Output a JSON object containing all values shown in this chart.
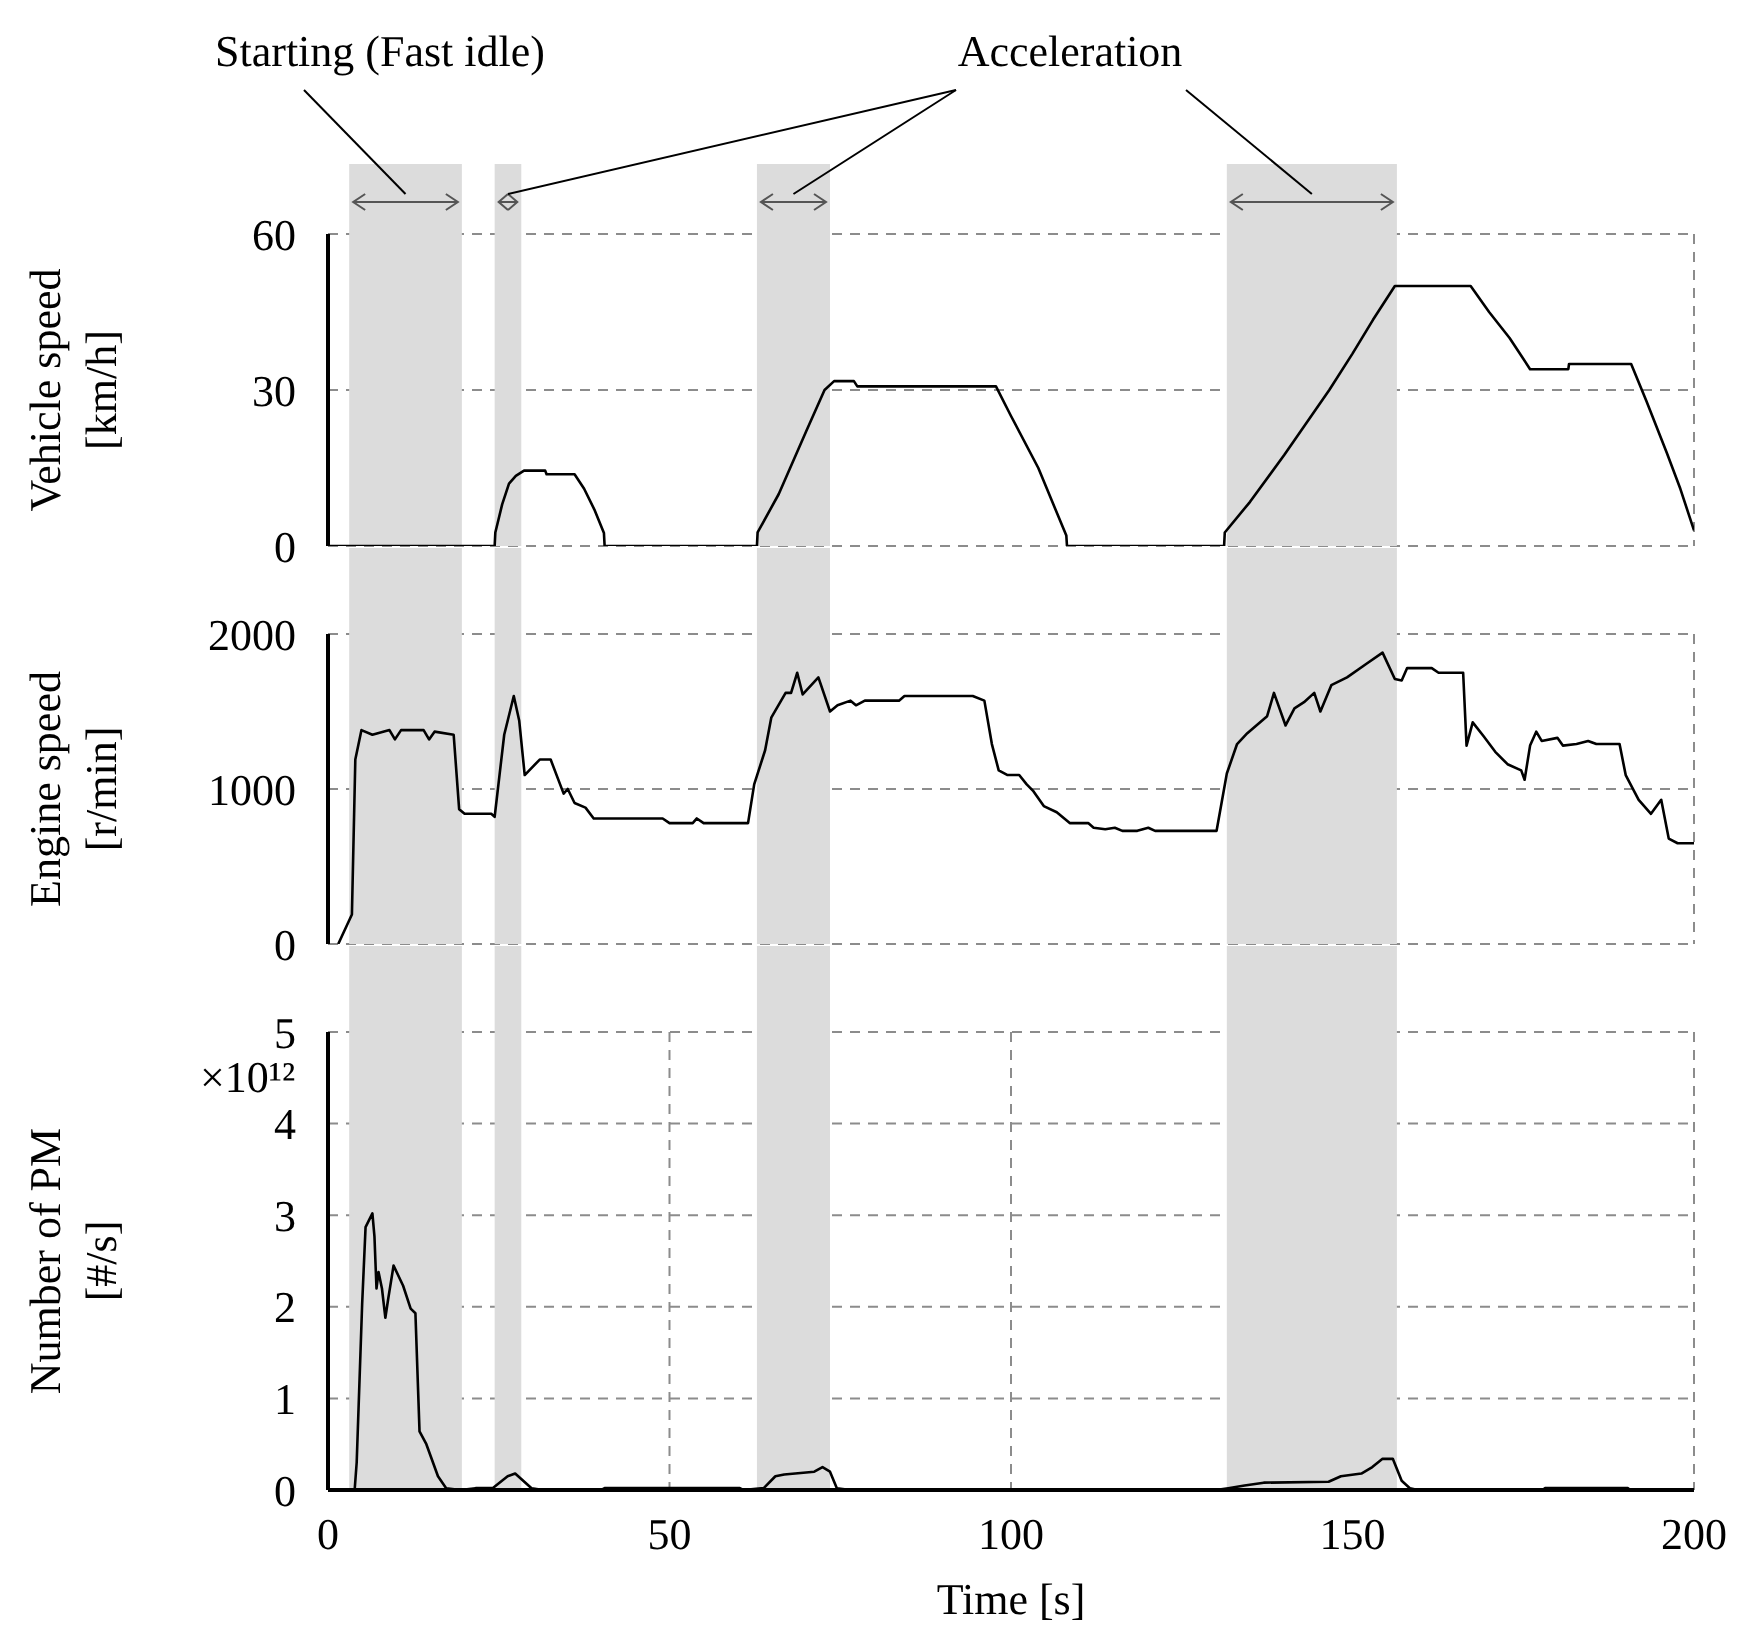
{
  "chart_data": [
    {
      "type": "line",
      "ylabel": "Vehicle speed [km/h]",
      "annotations": [
        "Starting (Fast idle)",
        "Acceleration"
      ],
      "xlim": [
        0,
        200
      ],
      "xticks": [
        0,
        50,
        100,
        150,
        200
      ],
      "ylim": [
        0,
        60
      ],
      "yticks": [
        0,
        30,
        60
      ],
      "grid": true,
      "tick_labels": "y",
      "bands": [
        {
          "axis": "x",
          "from": 3.1,
          "to": 19.6,
          "color": "#dcdcdc"
        },
        {
          "axis": "x",
          "from": 24.4,
          "to": 28.3,
          "color": "#dcdcdc"
        },
        {
          "axis": "x",
          "from": 62.8,
          "to": 73.5,
          "color": "#dcdcdc"
        },
        {
          "axis": "x",
          "from": 131.6,
          "to": 156.5,
          "color": "#dcdcdc"
        }
      ],
      "series": [
        {
          "color": "#000000",
          "x": [
            0,
            24.4,
            24.5,
            25.5,
            26.5,
            27.5,
            28.7,
            31.8,
            32,
            36.1,
            37.5,
            39,
            40.4,
            40.5,
            62.8,
            62.9,
            66,
            70,
            72.7,
            74.1,
            77,
            77.5,
            97.8,
            100,
            104,
            108.1,
            108.2,
            131.2,
            131.3,
            135,
            140,
            146.6,
            150,
            153,
            156.2,
            167.3,
            170,
            173,
            176,
            181.6,
            181.7,
            190.8,
            193,
            196,
            198,
            200
          ],
          "values": [
            0,
            0,
            2.6,
            8,
            12,
            13.5,
            14.5,
            14.5,
            13.8,
            13.8,
            11,
            7,
            2.5,
            0,
            0,
            2.6,
            10,
            22,
            30,
            31.7,
            31.7,
            30.7,
            30.7,
            25,
            15,
            2,
            0,
            0,
            2.6,
            8.5,
            17.5,
            30,
            37,
            43.5,
            50,
            50,
            45,
            40,
            34,
            34,
            35,
            35,
            28,
            18,
            11,
            3
          ]
        }
      ]
    },
    {
      "type": "line",
      "ylabel": "Engine speed [r/min]",
      "xlim": [
        0,
        200
      ],
      "xticks": [
        0,
        50,
        100,
        150,
        200
      ],
      "ylim": [
        0,
        2000
      ],
      "yticks": [
        0,
        1000,
        2000
      ],
      "grid": true,
      "tick_labels": "y",
      "bands": [
        {
          "axis": "x",
          "from": 3.1,
          "to": 19.6,
          "color": "#dcdcdc"
        },
        {
          "axis": "x",
          "from": 24.4,
          "to": 28.3,
          "color": "#dcdcdc"
        },
        {
          "axis": "x",
          "from": 62.8,
          "to": 73.5,
          "color": "#dcdcdc"
        },
        {
          "axis": "x",
          "from": 131.6,
          "to": 156.5,
          "color": "#dcdcdc"
        }
      ],
      "series": [
        {
          "color": "#000000",
          "x": [
            1.5,
            3.5,
            4.0,
            4.9,
            6.5,
            9.0,
            9.8,
            10.7,
            14.0,
            14.8,
            15.6,
            18.4,
            19.2,
            20.0,
            23.9,
            24.4,
            25.8,
            27.2,
            28.0,
            28.8,
            31.0,
            32.6,
            34.5,
            35.1,
            36.1,
            37.7,
            38.9,
            49.0,
            50.0,
            53.4,
            54.0,
            55.0,
            61.5,
            62.4,
            64.0,
            64.9,
            67.0,
            67.8,
            68.7,
            69.5,
            71.8,
            73.5,
            74.6,
            76.5,
            77.3,
            78.6,
            83.6,
            84.4,
            94.4,
            96.1,
            97.2,
            98.2,
            99.5,
            101.2,
            102.3,
            103.2,
            104.8,
            106.7,
            108.6,
            111.3,
            112.1,
            113.8,
            115.2,
            116.3,
            118.5,
            120.1,
            121.1,
            130.1,
            131.6,
            133.1,
            134.6,
            137.5,
            138.5,
            140.2,
            141.5,
            142.9,
            144.4,
            145.3,
            146.9,
            149.2,
            152.1,
            154.4,
            156.2,
            157.2,
            158,
            161.6,
            162.6,
            166.2,
            166.7,
            167.6,
            169.2,
            170.9,
            172.7,
            174.7,
            175.2,
            176,
            176.9,
            177.7,
            180,
            180.8,
            182.8,
            184.5,
            185.7,
            189.1,
            190,
            191.9,
            193.7,
            195.2,
            196.3,
            197.6,
            200
          ],
          "values": [
            0,
            190,
            1190,
            1380,
            1350,
            1380,
            1320,
            1380,
            1380,
            1320,
            1370,
            1350,
            870,
            840,
            840,
            820,
            1350,
            1600,
            1440,
            1090,
            1190,
            1190,
            970,
            1000,
            910,
            880,
            810,
            810,
            780,
            780,
            810,
            780,
            780,
            1030,
            1250,
            1460,
            1620,
            1620,
            1750,
            1610,
            1720,
            1500,
            1540,
            1570,
            1540,
            1570,
            1570,
            1600,
            1600,
            1570,
            1290,
            1120,
            1090,
            1090,
            1030,
            990,
            890,
            850,
            780,
            780,
            750,
            740,
            750,
            730,
            730,
            750,
            730,
            730,
            1100,
            1290,
            1360,
            1470,
            1620,
            1410,
            1520,
            1560,
            1620,
            1500,
            1670,
            1720,
            1810,
            1880,
            1710,
            1700,
            1780,
            1780,
            1750,
            1750,
            1280,
            1430,
            1340,
            1240,
            1160,
            1120,
            1060,
            1280,
            1370,
            1310,
            1330,
            1280,
            1290,
            1310,
            1290,
            1290,
            1090,
            930,
            840,
            930,
            680,
            650,
            650
          ]
        }
      ]
    },
    {
      "type": "line",
      "ylabel": "Number of PM [#/s]",
      "xlabel": "Time [s]",
      "annotations": [
        "×10¹²"
      ],
      "xlim": [
        0,
        200
      ],
      "xticks": [
        0,
        50,
        100,
        150,
        200
      ],
      "ylim": [
        0,
        5
      ],
      "yticks": [
        0,
        1,
        2,
        3,
        4,
        5
      ],
      "grid": true,
      "bands": [
        {
          "axis": "x",
          "from": 3.1,
          "to": 19.6,
          "color": "#dcdcdc"
        },
        {
          "axis": "x",
          "from": 24.4,
          "to": 28.3,
          "color": "#dcdcdc"
        },
        {
          "axis": "x",
          "from": 62.8,
          "to": 73.5,
          "color": "#dcdcdc"
        },
        {
          "axis": "x",
          "from": 131.6,
          "to": 156.5,
          "color": "#dcdcdc"
        }
      ],
      "series": [
        {
          "color": "#000000",
          "x": [
            0,
            3.9,
            4.2,
            5.0,
            5.5,
            6.5,
            6.8,
            7.1,
            7.4,
            7.9,
            8.4,
            8.8,
            9.6,
            11,
            12.1,
            12.8,
            13.4,
            14.4,
            16.1,
            17.3,
            19.4,
            21.6,
            24.1,
            26.3,
            27.4,
            29.8,
            31.5,
            40,
            40.5,
            60.3,
            60.8,
            63.8,
            65.5,
            66.8,
            71.2,
            72.4,
            73.5,
            74.5,
            76.5,
            130,
            131.8,
            134.2,
            137,
            146.5,
            148.3,
            151.3,
            152.9,
            154.4,
            155.9,
            157.2,
            158.4,
            159.6,
            177.8,
            178.2,
            190.3,
            190.7,
            200
          ],
          "values": [
            0,
            0,
            0.3,
            2.03,
            2.87,
            3.02,
            2.77,
            2.2,
            2.38,
            2.2,
            1.88,
            2.08,
            2.45,
            2.23,
            1.98,
            1.93,
            0.64,
            0.5,
            0.15,
            0.02,
            0,
            0.02,
            0.02,
            0.15,
            0.18,
            0.02,
            0,
            0,
            0.02,
            0.02,
            0,
            0.02,
            0.15,
            0.17,
            0.2,
            0.25,
            0.2,
            0.02,
            0,
            0,
            0.02,
            0.05,
            0.08,
            0.09,
            0.15,
            0.18,
            0.25,
            0.34,
            0.34,
            0.1,
            0.02,
            0,
            0,
            0.02,
            0.02,
            0,
            0
          ]
        }
      ]
    }
  ]
}
